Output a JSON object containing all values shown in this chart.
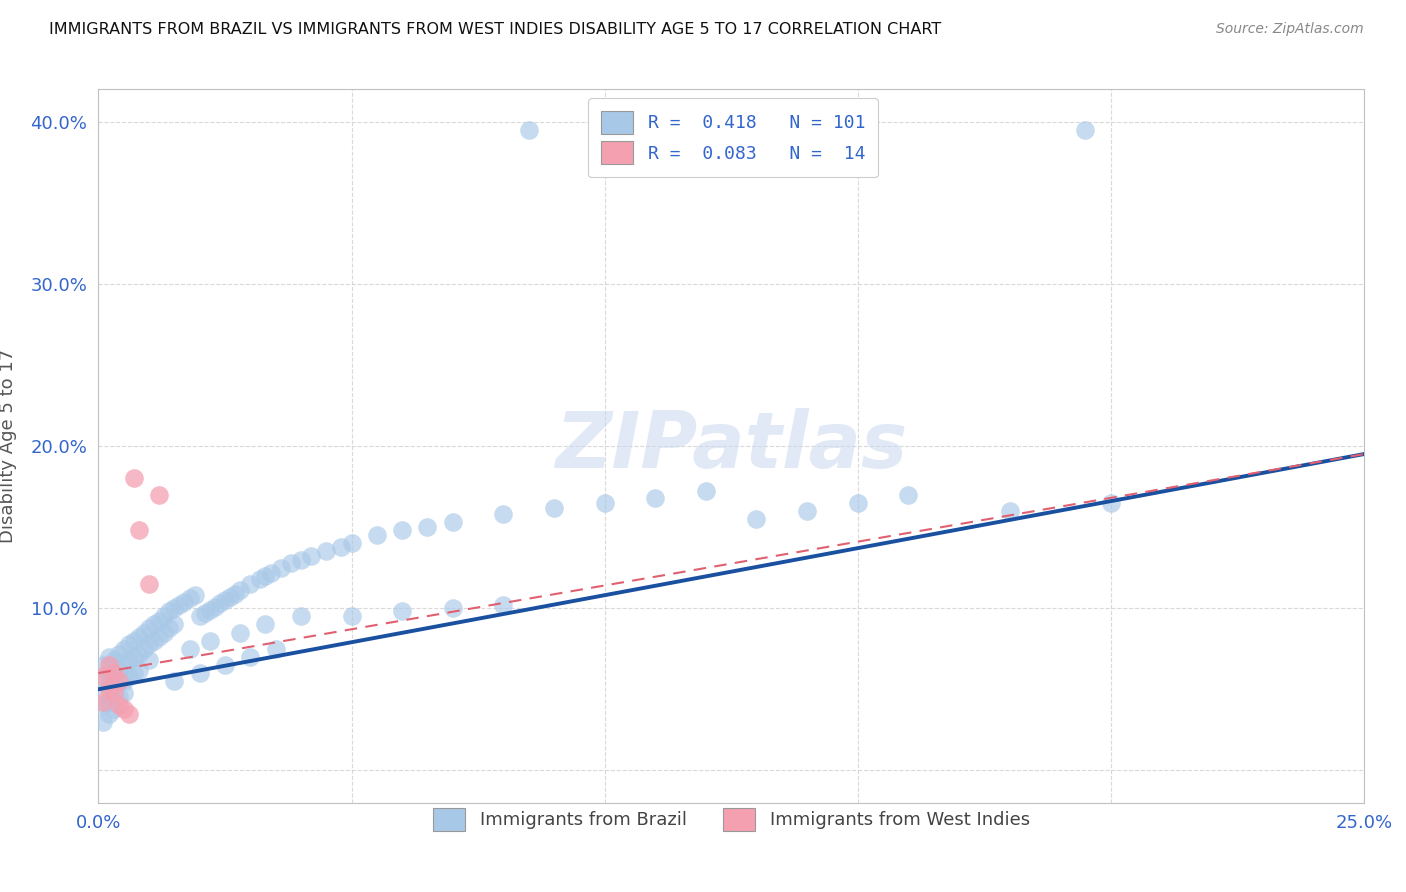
{
  "title": "IMMIGRANTS FROM BRAZIL VS IMMIGRANTS FROM WEST INDIES DISABILITY AGE 5 TO 17 CORRELATION CHART",
  "source": "Source: ZipAtlas.com",
  "ylabel": "Disability Age 5 to 17",
  "xlim": [
    0.0,
    0.25
  ],
  "ylim": [
    -0.02,
    0.42
  ],
  "xticks": [
    0.0,
    0.05,
    0.1,
    0.15,
    0.2,
    0.25
  ],
  "yticks": [
    0.0,
    0.1,
    0.2,
    0.3,
    0.4
  ],
  "brazil_R": 0.418,
  "brazil_N": 101,
  "westindies_R": 0.083,
  "westindies_N": 14,
  "brazil_color": "#a8c8e8",
  "westindies_color": "#f4a0b0",
  "brazil_line_color": "#1a50a0",
  "westindies_line_color": "#e06070",
  "brazil_x": [
    0.001,
    0.001,
    0.001,
    0.001,
    0.001,
    0.002,
    0.002,
    0.002,
    0.002,
    0.002,
    0.003,
    0.003,
    0.003,
    0.003,
    0.004,
    0.004,
    0.004,
    0.004,
    0.005,
    0.005,
    0.005,
    0.005,
    0.006,
    0.006,
    0.006,
    0.007,
    0.007,
    0.007,
    0.008,
    0.008,
    0.008,
    0.009,
    0.009,
    0.01,
    0.01,
    0.01,
    0.011,
    0.011,
    0.012,
    0.012,
    0.013,
    0.013,
    0.014,
    0.014,
    0.015,
    0.015,
    0.016,
    0.017,
    0.018,
    0.019,
    0.02,
    0.021,
    0.022,
    0.023,
    0.024,
    0.025,
    0.026,
    0.027,
    0.028,
    0.03,
    0.032,
    0.033,
    0.034,
    0.036,
    0.038,
    0.04,
    0.042,
    0.045,
    0.048,
    0.05,
    0.055,
    0.06,
    0.065,
    0.07,
    0.08,
    0.09,
    0.1,
    0.11,
    0.12,
    0.13,
    0.14,
    0.15,
    0.16,
    0.18,
    0.2,
    0.085,
    0.195,
    0.03,
    0.035,
    0.025,
    0.02,
    0.015,
    0.018,
    0.022,
    0.028,
    0.033,
    0.04,
    0.05,
    0.06,
    0.07,
    0.08
  ],
  "brazil_y": [
    0.065,
    0.055,
    0.048,
    0.04,
    0.03,
    0.07,
    0.06,
    0.052,
    0.042,
    0.035,
    0.068,
    0.058,
    0.05,
    0.038,
    0.072,
    0.062,
    0.055,
    0.045,
    0.075,
    0.065,
    0.055,
    0.048,
    0.078,
    0.068,
    0.058,
    0.08,
    0.07,
    0.06,
    0.082,
    0.072,
    0.062,
    0.085,
    0.075,
    0.088,
    0.078,
    0.068,
    0.09,
    0.08,
    0.092,
    0.082,
    0.095,
    0.085,
    0.098,
    0.088,
    0.1,
    0.09,
    0.102,
    0.104,
    0.106,
    0.108,
    0.095,
    0.097,
    0.099,
    0.101,
    0.103,
    0.105,
    0.107,
    0.109,
    0.111,
    0.115,
    0.118,
    0.12,
    0.122,
    0.125,
    0.128,
    0.13,
    0.132,
    0.135,
    0.138,
    0.14,
    0.145,
    0.148,
    0.15,
    0.153,
    0.158,
    0.162,
    0.165,
    0.168,
    0.172,
    0.155,
    0.16,
    0.165,
    0.17,
    0.16,
    0.165,
    0.395,
    0.395,
    0.07,
    0.075,
    0.065,
    0.06,
    0.055,
    0.075,
    0.08,
    0.085,
    0.09,
    0.095,
    0.095,
    0.098,
    0.1,
    0.102
  ],
  "westindies_x": [
    0.001,
    0.001,
    0.002,
    0.002,
    0.003,
    0.003,
    0.004,
    0.004,
    0.005,
    0.006,
    0.007,
    0.008,
    0.01,
    0.012
  ],
  "westindies_y": [
    0.058,
    0.042,
    0.065,
    0.05,
    0.06,
    0.048,
    0.055,
    0.04,
    0.038,
    0.035,
    0.18,
    0.148,
    0.115,
    0.17
  ],
  "brazil_line_x": [
    0.0,
    0.25
  ],
  "brazil_line_y": [
    0.05,
    0.195
  ],
  "westindies_line_x": [
    0.0,
    0.25
  ],
  "westindies_line_y": [
    0.06,
    0.195
  ]
}
